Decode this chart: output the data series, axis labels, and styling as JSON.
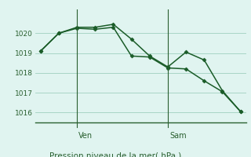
{
  "background_color": "#e0f4f0",
  "grid_color": "#a0cfc0",
  "line_color": "#1a5c28",
  "axis_color": "#2a6030",
  "title": "Pression niveau de la mer( hPa )",
  "ylim": [
    1015.5,
    1021.2
  ],
  "yticks": [
    1016,
    1017,
    1018,
    1019,
    1020
  ],
  "series1_x": [
    0,
    1,
    2,
    3,
    4,
    5,
    6,
    7,
    8,
    9,
    10,
    11
  ],
  "series1_y": [
    1019.1,
    1020.0,
    1020.3,
    1020.3,
    1020.45,
    1019.7,
    1018.85,
    1018.3,
    1019.05,
    1018.65,
    1017.1,
    1016.05
  ],
  "series2_x": [
    0,
    1,
    2,
    3,
    4,
    5,
    6,
    7,
    8,
    9,
    10,
    11
  ],
  "series2_y": [
    1019.1,
    1020.0,
    1020.25,
    1020.2,
    1020.3,
    1018.85,
    1018.8,
    1018.25,
    1018.2,
    1017.6,
    1017.05,
    1016.05
  ],
  "ven_x": 2,
  "sam_x": 7,
  "x_total": 11,
  "xlim": [
    -0.3,
    11.3
  ],
  "tick_fontsize": 6.5,
  "label_fontsize": 7.5,
  "day_fontsize": 7.0
}
